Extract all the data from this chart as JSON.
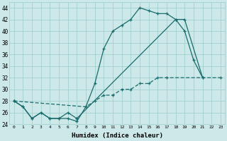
{
  "xlabel": "Humidex (Indice chaleur)",
  "x_ticks": [
    0,
    1,
    2,
    3,
    4,
    5,
    6,
    7,
    8,
    9,
    10,
    11,
    12,
    13,
    14,
    15,
    16,
    17,
    18,
    19,
    20,
    21,
    22,
    23
  ],
  "xlim": [
    -0.5,
    23.5
  ],
  "ylim": [
    24,
    45
  ],
  "y_ticks": [
    24,
    26,
    28,
    30,
    32,
    34,
    36,
    38,
    40,
    42,
    44
  ],
  "bg_color": "#cce8e8",
  "grid_color": "#99cccc",
  "line_color": "#1a6b6b",
  "line1_x": [
    0,
    1,
    2,
    3,
    4,
    5,
    6,
    7,
    8,
    9,
    10,
    11,
    12,
    13,
    14,
    15,
    16,
    17,
    18,
    19,
    20,
    21
  ],
  "line1_y": [
    28,
    27,
    25,
    26,
    25,
    25,
    25,
    24.5,
    27,
    31,
    37,
    40,
    41,
    42,
    44,
    43.5,
    43,
    43,
    42,
    40,
    35,
    32
  ],
  "line2_x": [
    0,
    1,
    2,
    3,
    4,
    5,
    6,
    7,
    18,
    19,
    21
  ],
  "line2_y": [
    28,
    27,
    25,
    26,
    25,
    25,
    26,
    25,
    42,
    42,
    32
  ],
  "line3_x": [
    0,
    8,
    9,
    10,
    11,
    12,
    13,
    14,
    15,
    16,
    17,
    23
  ],
  "line3_y": [
    28,
    27,
    28,
    29,
    29,
    30,
    30,
    31,
    31,
    32,
    32,
    32
  ]
}
